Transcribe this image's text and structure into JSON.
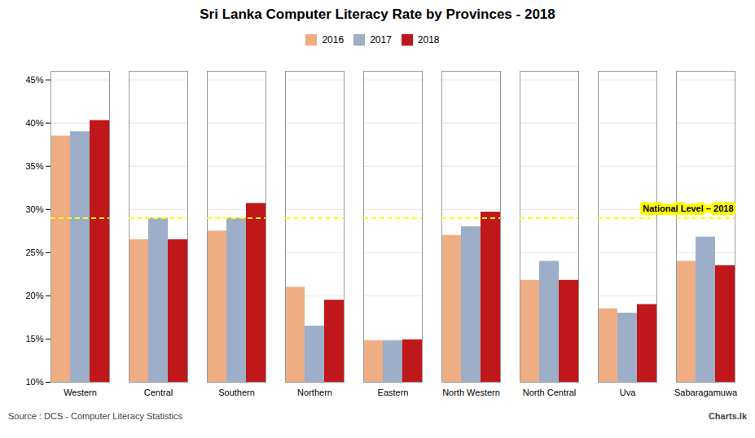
{
  "chart_data": {
    "type": "bar",
    "title": "Sri Lanka Computer Literacy Rate by Provinces - 2018",
    "categories": [
      "Western",
      "Central",
      "Southern",
      "Northern",
      "Eastern",
      "North Western",
      "North Central",
      "Uva",
      "Sabaragamuwa"
    ],
    "series": [
      {
        "name": "2016",
        "color": "#EFAD84",
        "values": [
          38.5,
          26.5,
          27.5,
          21.0,
          14.8,
          27.0,
          21.8,
          18.5,
          24.0
        ]
      },
      {
        "name": "2017",
        "color": "#9DAEC8",
        "values": [
          39.0,
          29.0,
          29.0,
          16.5,
          14.8,
          28.0,
          24.0,
          18.0,
          26.8
        ]
      },
      {
        "name": "2018",
        "color": "#C0171A",
        "values": [
          40.3,
          26.5,
          30.7,
          19.5,
          14.9,
          29.7,
          21.8,
          19.0,
          23.5
        ]
      }
    ],
    "annotations": [
      {
        "text": "National Level – 2018",
        "y": 29.0,
        "color": "yellow"
      }
    ],
    "source": "Source : DCS - Computer Literacy Statistics",
    "credit": "Charts.lk",
    "ylim": [
      10,
      46
    ],
    "yticks": [
      {
        "value": 10,
        "label": "10%"
      },
      {
        "value": 15,
        "label": "15%"
      },
      {
        "value": 20,
        "label": "20%"
      },
      {
        "value": 25,
        "label": "25%"
      },
      {
        "value": 30,
        "label": "30%"
      },
      {
        "value": 35,
        "label": "35%"
      },
      {
        "value": 40,
        "label": "40%"
      },
      {
        "value": 45,
        "label": "45%"
      }
    ],
    "grid": true,
    "legend": "top"
  }
}
